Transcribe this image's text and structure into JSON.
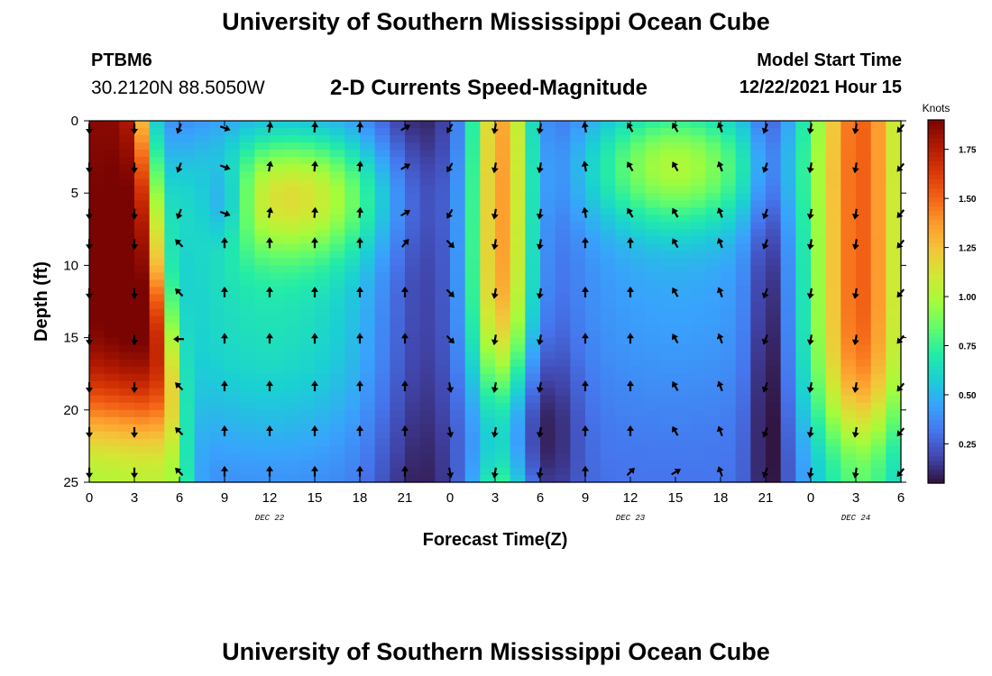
{
  "header": {
    "title": "University of Southern Mississippi Ocean Cube",
    "station_id": "PTBM6",
    "coords": "30.2120N  88.5050W",
    "plot_title": "2-D Currents Speed-Magnitude",
    "model_label": "Model Start Time",
    "model_time": "12/22/2021 Hour 15"
  },
  "footer": {
    "title": "University of Southern Mississippi Ocean Cube"
  },
  "chart_data": {
    "type": "heatmap",
    "title": "2-D Currents Speed-Magnitude",
    "xlabel": "Forecast Time(Z)",
    "ylabel": "Depth (ft)",
    "x_ticks": [
      "0",
      "3",
      "6",
      "9",
      "12",
      "15",
      "18",
      "21",
      "0",
      "3",
      "6",
      "9",
      "12",
      "15",
      "18",
      "21",
      "0",
      "3",
      "6"
    ],
    "x_hours": [
      0,
      3,
      6,
      9,
      12,
      15,
      18,
      21,
      24,
      27,
      30,
      33,
      36,
      39,
      42,
      45,
      48,
      51,
      54
    ],
    "xlim": [
      0,
      54
    ],
    "date_labels": [
      {
        "label": "DEC 22",
        "hour": 12
      },
      {
        "label": "DEC 23",
        "hour": 36
      },
      {
        "label": "DEC 24",
        "hour": 51
      }
    ],
    "y_ticks": [
      0,
      5,
      10,
      15,
      20,
      25
    ],
    "ylim": [
      0,
      25
    ],
    "y_inverted": true,
    "colorbar": {
      "label": "Knots",
      "ticks": [
        "0.25",
        "0.50",
        "0.75",
        "1.00",
        "1.25",
        "1.50",
        "1.75"
      ],
      "tick_values": [
        0.25,
        0.5,
        0.75,
        1.0,
        1.25,
        1.5,
        1.75
      ],
      "min": 0.05,
      "max": 1.9,
      "colors": [
        "#30123b",
        "#4145ab",
        "#4675ed",
        "#39a2fc",
        "#1bcfd4",
        "#24eca6",
        "#61fc6c",
        "#a4fc3b",
        "#d1e834",
        "#f3c63a",
        "#fe9b2d",
        "#f36315",
        "#d93806",
        "#b11901",
        "#7a0402"
      ]
    },
    "arrow_depths": [
      0.5,
      3.2,
      6.4,
      8.5,
      11.9,
      15.1,
      18.4,
      21.5,
      24.3
    ],
    "arrow_hours": [
      0,
      3,
      6,
      9,
      12,
      15,
      18,
      21,
      24,
      27,
      30,
      33,
      36,
      39,
      42,
      45,
      48,
      51,
      54
    ]
  }
}
